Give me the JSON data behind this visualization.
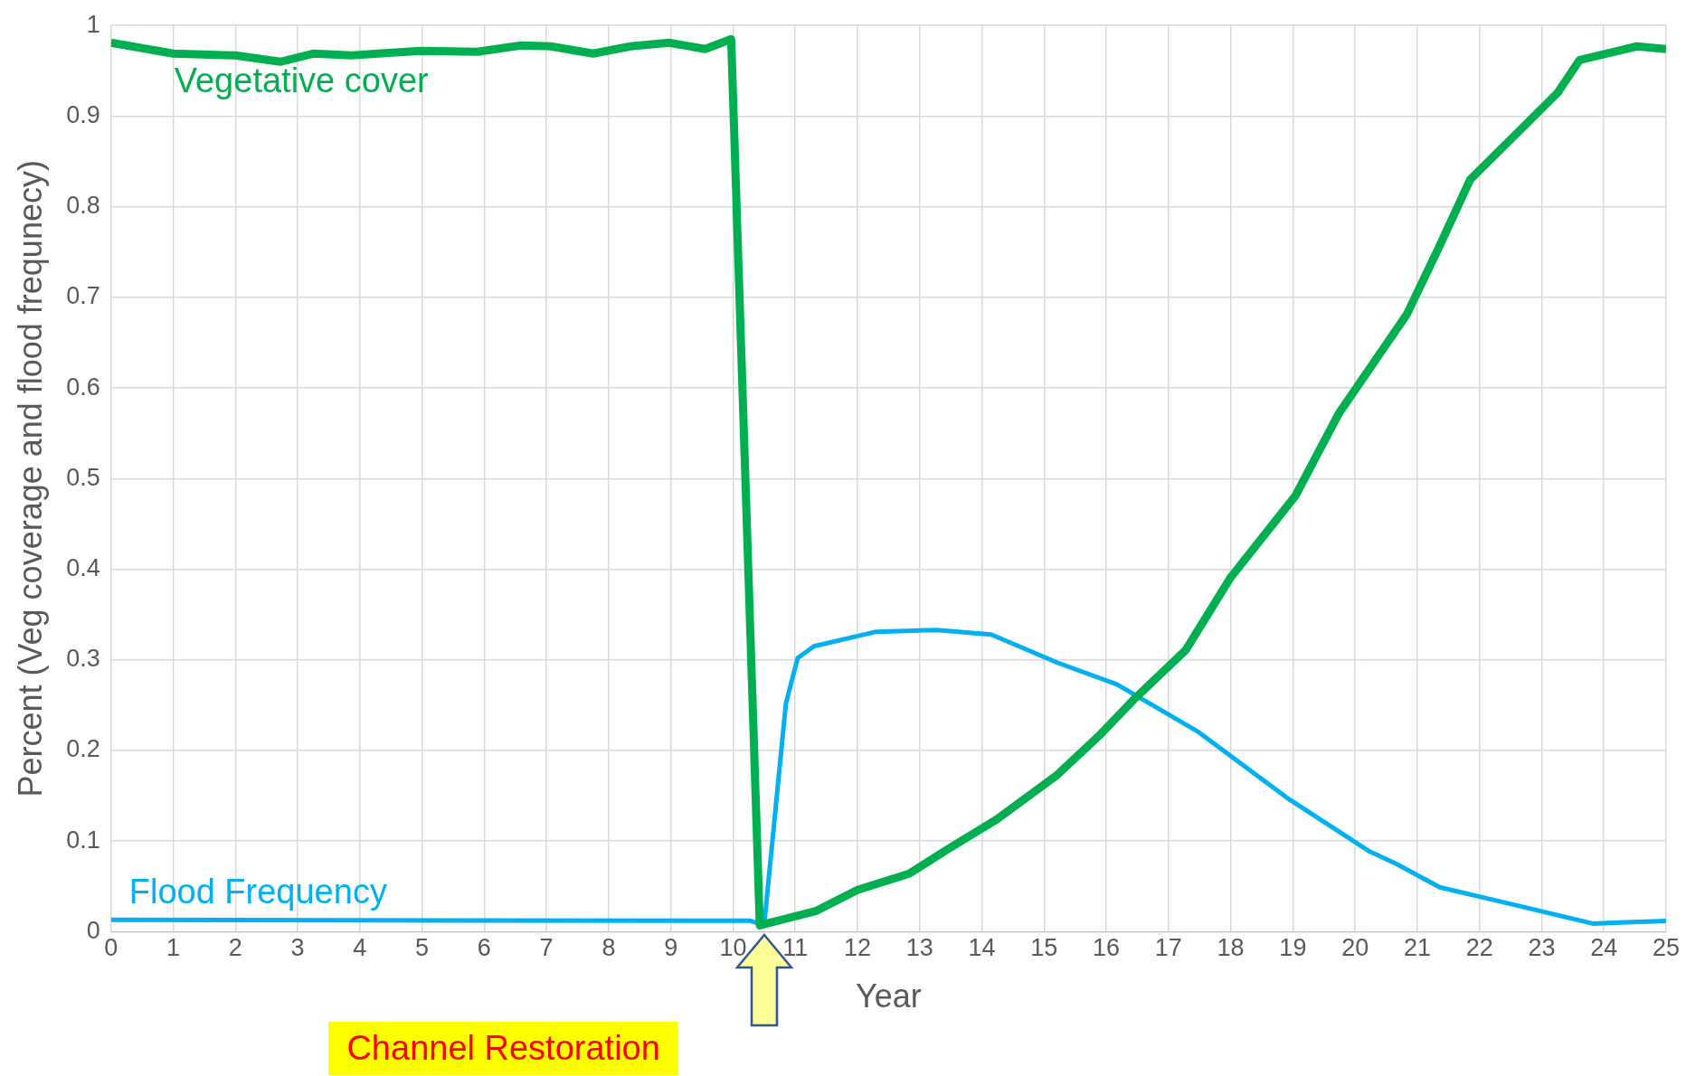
{
  "chart_data": {
    "type": "line",
    "xlabel": "Year",
    "ylabel": "Percent (Veg coverage and flood frequnecy)",
    "xlim": [
      0,
      25
    ],
    "xticks": [
      0,
      1,
      2,
      3,
      4,
      5,
      6,
      7,
      8,
      9,
      10,
      11,
      12,
      13,
      14,
      15,
      16,
      17,
      18,
      19,
      20,
      21,
      22,
      23,
      24,
      25
    ],
    "ylim": [
      0,
      1
    ],
    "yticks": [
      0,
      0.1,
      0.2,
      0.3,
      0.4,
      0.5,
      0.6,
      0.7,
      0.8,
      0.9,
      1
    ],
    "grid": true,
    "legend": false,
    "marker": "none",
    "line_style": "solid",
    "annotations": [
      "Channel Restoration"
    ],
    "series": [
      {
        "name": "Vegetative cover",
        "color": "#00b050",
        "x": [
          0,
          1,
          2,
          2.72,
          3.25,
          3.87,
          4.3,
          4.98,
          5.89,
          6.59,
          7.07,
          7.75,
          8.35,
          8.97,
          9.55,
          9.97,
          10.43,
          11.34,
          12.0,
          12.83,
          13.45,
          14.24,
          15.21,
          15.91,
          16.44,
          17.28,
          17.99,
          19.04,
          19.74,
          20.83,
          21.36,
          21.85,
          23.26,
          23.61,
          24.53,
          25
        ],
        "values": [
          0.981,
          0.969,
          0.967,
          0.96,
          0.969,
          0.967,
          0.969,
          0.972,
          0.971,
          0.978,
          0.977,
          0.969,
          0.977,
          0.981,
          0.974,
          0.985,
          0.007,
          0.023,
          0.046,
          0.064,
          0.091,
          0.124,
          0.173,
          0.218,
          0.256,
          0.311,
          0.39,
          0.481,
          0.572,
          0.681,
          0.757,
          0.83,
          0.926,
          0.962,
          0.977,
          0.974
        ]
      },
      {
        "name": "Flood Frequency",
        "color": "#00b0f0",
        "x": [
          0,
          10.28,
          10.5,
          10.85,
          11.04,
          11.3,
          12.3,
          13.27,
          14.15,
          15.21,
          16.17,
          17.49,
          18.9,
          20.22,
          20.66,
          21.36,
          22.54,
          23.82,
          25
        ],
        "values": [
          0.013,
          0.012,
          0.007,
          0.252,
          0.302,
          0.315,
          0.331,
          0.333,
          0.328,
          0.297,
          0.273,
          0.22,
          0.148,
          0.089,
          0.075,
          0.049,
          0.03,
          0.009,
          0.012
        ]
      }
    ]
  }
}
